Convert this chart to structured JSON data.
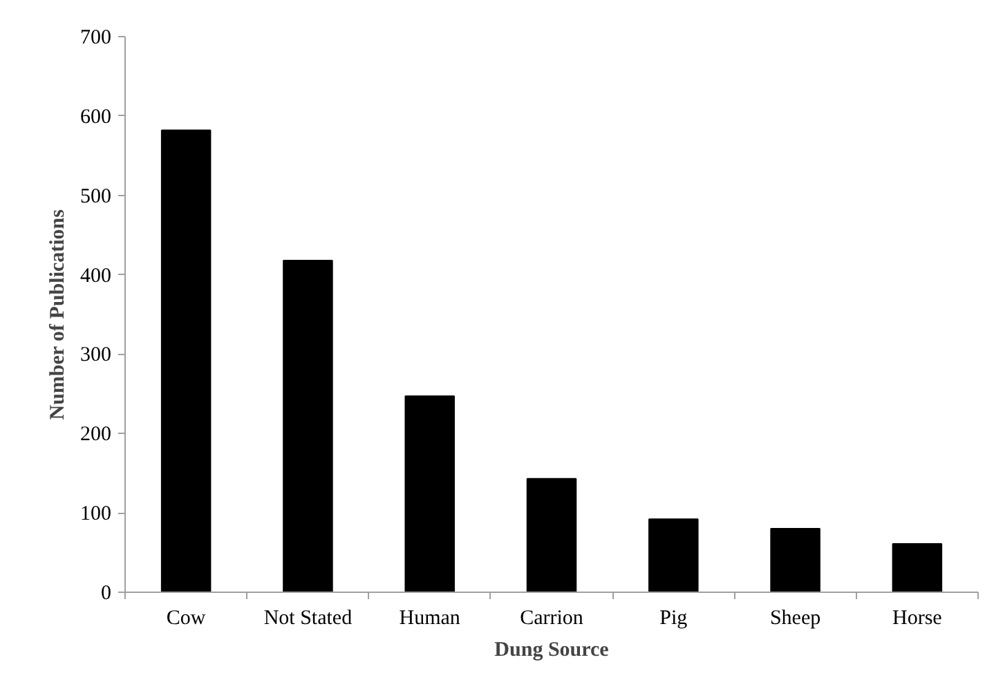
{
  "chart_data": {
    "type": "bar",
    "xlabel": "Dung Source",
    "ylabel": "Number of Publications",
    "categories": [
      "Cow",
      "Not Stated",
      "Human",
      "Carrion",
      "Pig",
      "Sheep",
      "Horse"
    ],
    "values": [
      582,
      418,
      247,
      143,
      92,
      80,
      61
    ],
    "color": "#000000",
    "ylim": [
      0,
      700
    ],
    "yticks": [
      0,
      100,
      200,
      300,
      400,
      500,
      600,
      700
    ],
    "grid": false
  }
}
